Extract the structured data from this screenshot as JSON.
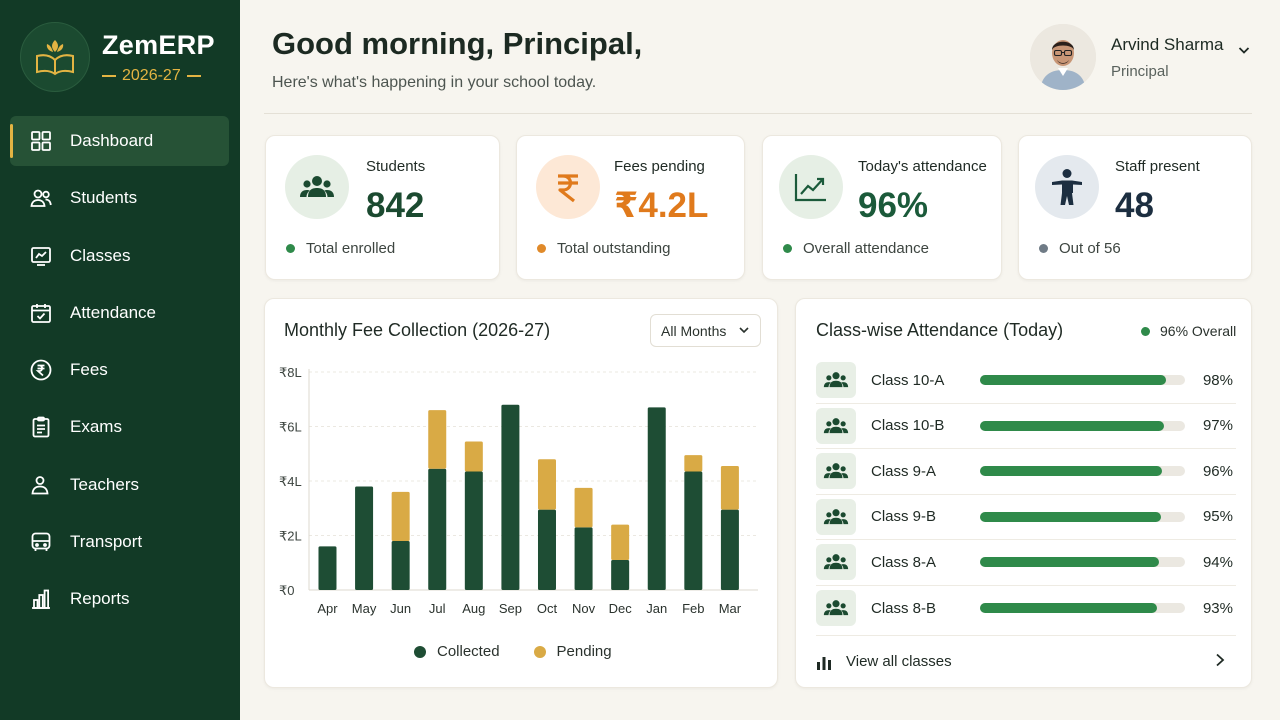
{
  "brand": {
    "name": "ZemERP",
    "year": "2026-27"
  },
  "nav": [
    {
      "label": "Dashboard",
      "icon": "dashboard-icon",
      "active": true
    },
    {
      "label": "Students",
      "icon": "students-icon"
    },
    {
      "label": "Classes",
      "icon": "classes-icon"
    },
    {
      "label": "Attendance",
      "icon": "calendar-check-icon"
    },
    {
      "label": "Fees",
      "icon": "rupee-icon"
    },
    {
      "label": "Exams",
      "icon": "clipboard-icon"
    },
    {
      "label": "Teachers",
      "icon": "teachers-icon"
    },
    {
      "label": "Transport",
      "icon": "bus-icon"
    },
    {
      "label": "Reports",
      "icon": "bar-chart-icon"
    }
  ],
  "header": {
    "title": "Good morning, Principal,",
    "subtitle": "Here's what's happening in your school today."
  },
  "profile": {
    "name": "Arvind Sharma",
    "role": "Principal"
  },
  "stats": [
    {
      "label": "Students",
      "value": "842",
      "note": "Total enrolled",
      "color": "#1b4a30",
      "dot": "#2f8a4a"
    },
    {
      "label": "Fees pending",
      "value": "₹4.2L",
      "note": "Total outstanding",
      "color": "#e07a1c",
      "dot": "#e08a2a"
    },
    {
      "label": "Today's attendance",
      "value": "96%",
      "note": "Overall attendance",
      "color": "#1b5a3a",
      "dot": "#2f8a4a"
    },
    {
      "label": "Staff present",
      "value": "48",
      "note": "Out of 56",
      "color": "#1c2e40",
      "dot": "#6f7b86"
    }
  ],
  "fee_panel": {
    "title": "Monthly Fee Collection (2026-27)",
    "filter": "All Months",
    "legend": {
      "collected": "Collected",
      "pending": "Pending"
    }
  },
  "chart_data": {
    "type": "bar",
    "stacked": true,
    "categories": [
      "Apr",
      "May",
      "Jun",
      "Jul",
      "Aug",
      "Sep",
      "Oct",
      "Nov",
      "Dec",
      "Jan",
      "Feb",
      "Mar"
    ],
    "series": [
      {
        "name": "Collected",
        "color": "#1e4d34",
        "values": [
          1.6,
          3.8,
          1.8,
          4.45,
          4.35,
          6.8,
          2.95,
          2.3,
          1.1,
          6.7,
          4.35,
          2.95
        ]
      },
      {
        "name": "Pending",
        "color": "#d9aa45",
        "values": [
          0,
          0,
          1.8,
          2.15,
          1.1,
          0,
          1.85,
          1.45,
          1.3,
          0,
          0.6,
          1.6
        ]
      }
    ],
    "yticks": [
      "₹0",
      "₹2L",
      "₹4L",
      "₹6L",
      "₹8L"
    ],
    "ylim": [
      0,
      8
    ],
    "grid": true,
    "legend_position": "bottom"
  },
  "attendance_panel": {
    "title": "Class-wise Attendance (Today)",
    "overall": "96% Overall",
    "rows": [
      {
        "name": "Class 10-A",
        "pct": "98%",
        "value": 0.98
      },
      {
        "name": "Class 10-B",
        "pct": "97%",
        "value": 0.97
      },
      {
        "name": "Class 9-A",
        "pct": "96%",
        "value": 0.96
      },
      {
        "name": "Class 9-B",
        "pct": "95%",
        "value": 0.95
      },
      {
        "name": "Class 8-A",
        "pct": "94%",
        "value": 0.94
      },
      {
        "name": "Class 8-B",
        "pct": "93%",
        "value": 0.93
      }
    ],
    "view_all": "View all classes"
  }
}
